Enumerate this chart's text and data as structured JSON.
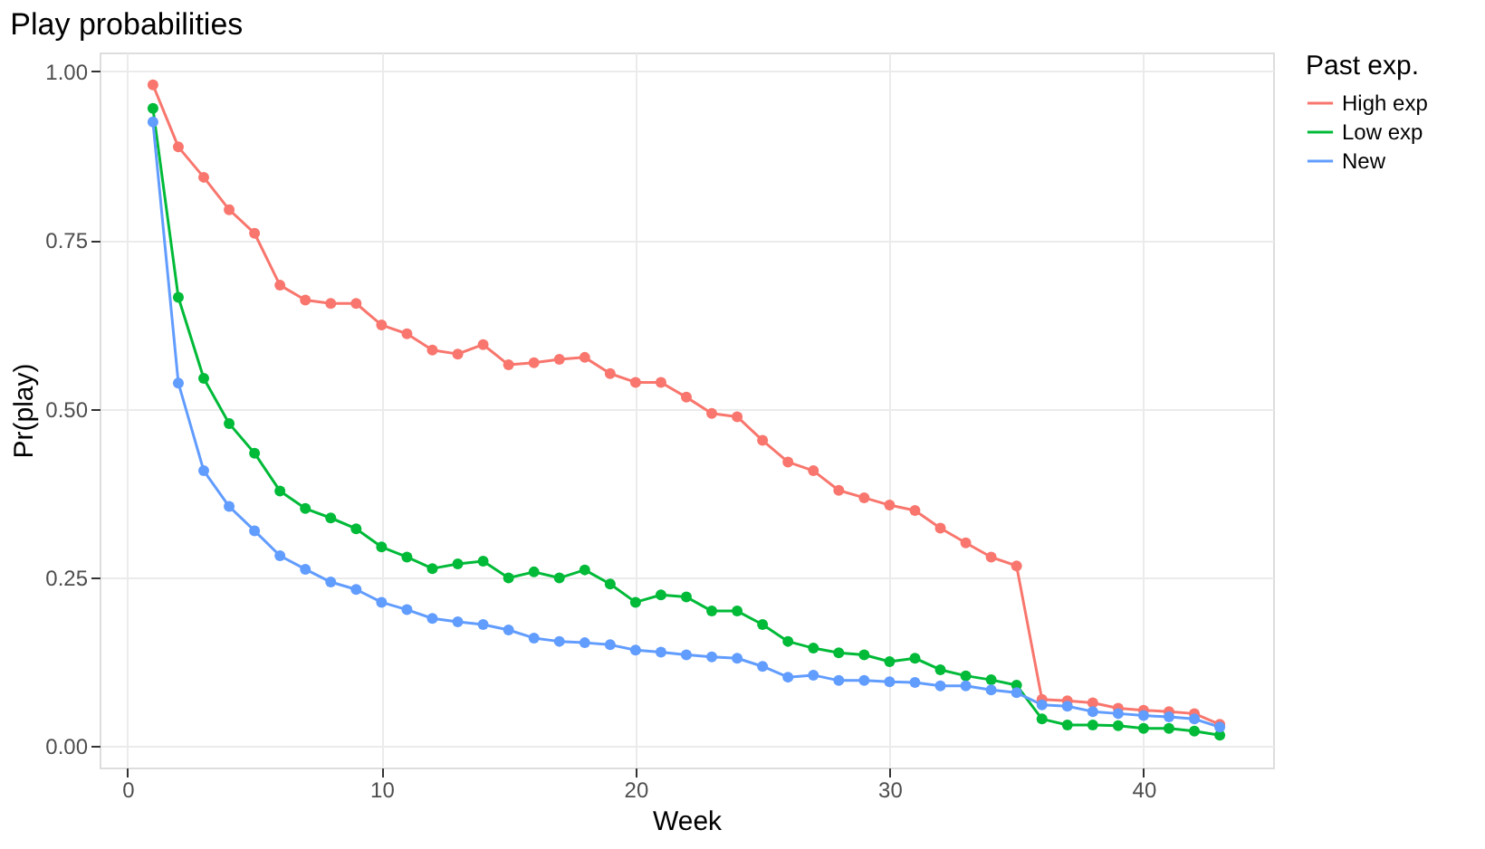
{
  "chart_data": {
    "type": "line",
    "title": "Play probabilities",
    "xlabel": "Week",
    "ylabel": "Pr(play)",
    "legend_title": "Past exp.",
    "x": [
      1,
      2,
      3,
      4,
      5,
      6,
      7,
      8,
      9,
      10,
      11,
      12,
      13,
      14,
      15,
      16,
      17,
      18,
      19,
      20,
      21,
      22,
      23,
      24,
      25,
      26,
      27,
      28,
      29,
      30,
      31,
      32,
      33,
      34,
      35,
      36,
      37,
      38,
      39,
      40,
      41,
      42,
      43
    ],
    "series": [
      {
        "name": "High exp",
        "color": "#f8766d",
        "values": [
          0.98,
          0.888,
          0.843,
          0.795,
          0.76,
          0.683,
          0.661,
          0.656,
          0.656,
          0.624,
          0.611,
          0.587,
          0.581,
          0.595,
          0.565,
          0.568,
          0.573,
          0.576,
          0.552,
          0.539,
          0.539,
          0.517,
          0.493,
          0.488,
          0.453,
          0.421,
          0.408,
          0.379,
          0.368,
          0.357,
          0.349,
          0.323,
          0.301,
          0.28,
          0.267,
          0.069,
          0.067,
          0.064,
          0.056,
          0.053,
          0.051,
          0.048,
          0.032
        ]
      },
      {
        "name": "Low exp",
        "color": "#00ba38",
        "values": [
          0.945,
          0.665,
          0.545,
          0.478,
          0.434,
          0.378,
          0.352,
          0.338,
          0.322,
          0.295,
          0.28,
          0.263,
          0.27,
          0.274,
          0.249,
          0.258,
          0.249,
          0.261,
          0.24,
          0.213,
          0.224,
          0.221,
          0.2,
          0.2,
          0.18,
          0.155,
          0.145,
          0.138,
          0.135,
          0.125,
          0.13,
          0.113,
          0.104,
          0.098,
          0.09,
          0.04,
          0.031,
          0.031,
          0.03,
          0.026,
          0.026,
          0.022,
          0.016
        ]
      },
      {
        "name": "New",
        "color": "#619cff",
        "values": [
          0.925,
          0.538,
          0.408,
          0.355,
          0.319,
          0.282,
          0.262,
          0.243,
          0.232,
          0.213,
          0.202,
          0.189,
          0.184,
          0.18,
          0.172,
          0.16,
          0.155,
          0.153,
          0.15,
          0.142,
          0.139,
          0.135,
          0.132,
          0.13,
          0.118,
          0.102,
          0.105,
          0.097,
          0.097,
          0.095,
          0.094,
          0.089,
          0.089,
          0.083,
          0.079,
          0.061,
          0.059,
          0.051,
          0.048,
          0.045,
          0.043,
          0.04,
          0.028
        ]
      }
    ],
    "xlim": [
      -1.1,
      45.1
    ],
    "xticks": [
      0,
      10,
      20,
      30,
      40
    ],
    "ylim": [
      -0.032,
      1.028
    ],
    "yticks": [
      {
        "value": 0,
        "label": "0.00"
      },
      {
        "value": 0.25,
        "label": "0.25"
      },
      {
        "value": 0.5,
        "label": "0.50"
      },
      {
        "value": 0.75,
        "label": "0.75"
      },
      {
        "value": 1,
        "label": "1.00"
      }
    ],
    "grid": true,
    "legend": "right",
    "marker": "circle",
    "line_style": "solid"
  }
}
